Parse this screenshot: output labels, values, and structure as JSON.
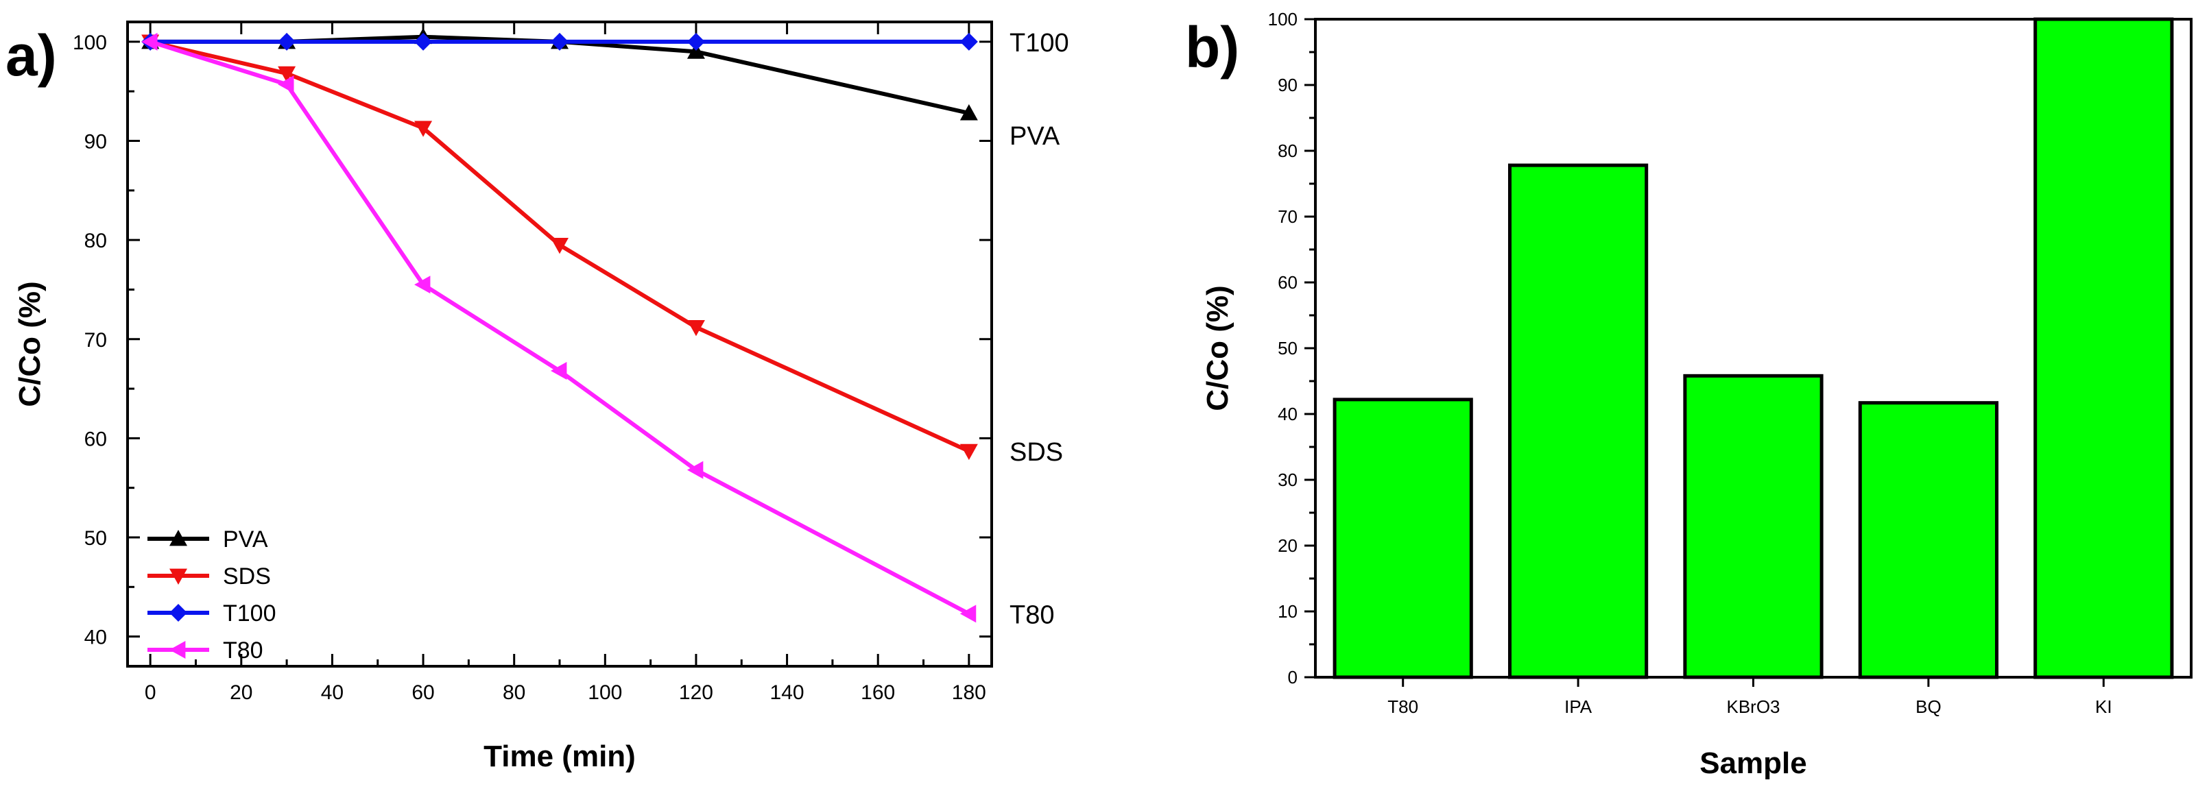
{
  "panels": [
    {
      "letter": "a)"
    },
    {
      "letter": "b)"
    }
  ],
  "colors": {
    "PVA": "#000000",
    "SDS": "#ee1111",
    "T100": "#0a14ee",
    "T80": "#ff22ff",
    "bar_fill": "#00ff00",
    "axis": "#000000"
  },
  "chart_data": [
    {
      "type": "line",
      "xlabel": "Time (min)",
      "ylabel": "C/Co (%)",
      "xlim": [
        -5,
        185
      ],
      "ylim": [
        37,
        102
      ],
      "x_ticks": [
        "0",
        "20",
        "40",
        "60",
        "80",
        "100",
        "120",
        "140",
        "160",
        "180"
      ],
      "y_ticks": [
        "40",
        "50",
        "60",
        "70",
        "80",
        "90",
        "100"
      ],
      "legend_position": "bottom-left",
      "series": [
        {
          "name": "PVA",
          "marker": "triangle-up",
          "color": "#000000",
          "end_label": "PVA",
          "points": [
            [
              0,
              100
            ],
            [
              30,
              100
            ],
            [
              60,
              100.5
            ],
            [
              90,
              100
            ],
            [
              120,
              99
            ],
            [
              180,
              92.8
            ]
          ]
        },
        {
          "name": "SDS",
          "marker": "triangle-down",
          "color": "#ee1111",
          "end_label": "SDS",
          "points": [
            [
              0,
              100
            ],
            [
              30,
              96.8
            ],
            [
              60,
              91.3
            ],
            [
              90,
              79.5
            ],
            [
              120,
              71.2
            ],
            [
              180,
              58.7
            ]
          ]
        },
        {
          "name": "T100",
          "marker": "diamond",
          "color": "#0a14ee",
          "end_label": "T100",
          "points": [
            [
              0,
              100
            ],
            [
              30,
              100
            ],
            [
              60,
              100
            ],
            [
              90,
              100
            ],
            [
              120,
              100
            ],
            [
              180,
              100
            ]
          ]
        },
        {
          "name": "T80",
          "marker": "triangle-left",
          "color": "#ff22ff",
          "end_label": "T80",
          "points": [
            [
              0,
              100
            ],
            [
              30,
              95.7
            ],
            [
              60,
              75.5
            ],
            [
              90,
              66.8
            ],
            [
              120,
              56.8
            ],
            [
              180,
              42.3
            ]
          ]
        }
      ]
    },
    {
      "type": "bar",
      "xlabel": "Sample",
      "ylabel": "C/Co (%)",
      "ylim": [
        0,
        100
      ],
      "y_ticks": [
        "0",
        "10",
        "20",
        "30",
        "40",
        "50",
        "60",
        "70",
        "80",
        "90",
        "100"
      ],
      "categories": [
        "T80",
        "IPA",
        "KBrO3",
        "BQ",
        "KI"
      ],
      "values": [
        42.2,
        77.8,
        45.8,
        41.7,
        100
      ]
    }
  ]
}
